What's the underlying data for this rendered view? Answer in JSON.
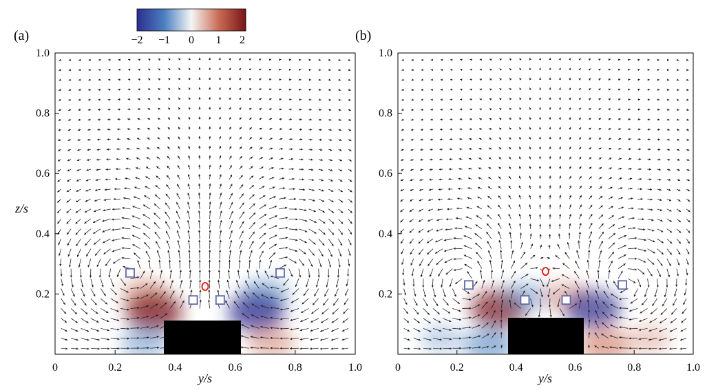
{
  "colorbar": {
    "ticks": [
      "−2",
      "−1",
      "0",
      "1",
      "2"
    ],
    "range": [
      -2,
      2
    ],
    "colors": [
      "#2c2f8f",
      "#4b7fc0",
      "#f5f5f5",
      "#c96d55",
      "#7a1419"
    ]
  },
  "marker_colors": {
    "square": "#5c68a8",
    "circle": "#e3281c",
    "body": "#000000"
  },
  "chart_data": [
    {
      "type": "vector-field",
      "panel_label": "(a)",
      "xlabel": "y/s",
      "ylabel": "z/s",
      "xlim": [
        0,
        1.0
      ],
      "ylim": [
        0,
        1.0
      ],
      "xticks": [
        "0",
        "0.2",
        "0.4",
        "0.6",
        "0.8",
        "1.0"
      ],
      "yticks": [
        "0.2",
        "0.4",
        "0.6",
        "0.8",
        "1.0"
      ],
      "block": {
        "y": [
          0.375,
          0.625
        ],
        "z": [
          0,
          0.12
        ]
      },
      "square_markers": [
        [
          0.25,
          0.27
        ],
        [
          0.75,
          0.27
        ],
        [
          0.46,
          0.18
        ],
        [
          0.55,
          0.18
        ]
      ],
      "circle_markers": [
        [
          0.5,
          0.225
        ]
      ],
      "vortex_centres": [
        [
          0.25,
          0.27,
          1
        ],
        [
          0.75,
          0.27,
          -1
        ]
      ],
      "vorticity_patches": [
        {
          "y": 0.3,
          "z": 0.2,
          "value": 0.6
        },
        {
          "y": 0.33,
          "z": 0.14,
          "value": 1.4
        },
        {
          "y": 0.7,
          "z": 0.2,
          "value": -0.6
        },
        {
          "y": 0.67,
          "z": 0.14,
          "value": -1.4
        },
        {
          "y": 0.3,
          "z": 0.04,
          "value": -0.6
        },
        {
          "y": 0.72,
          "z": 0.04,
          "value": 0.6
        }
      ]
    },
    {
      "type": "vector-field",
      "panel_label": "(b)",
      "xlabel": "y/s",
      "ylabel": "",
      "xlim": [
        0,
        1.0
      ],
      "ylim": [
        0,
        1.0
      ],
      "xticks": [
        "0",
        "0.2",
        "0.4",
        "0.6",
        "0.8",
        "1.0"
      ],
      "yticks": [
        "0.2",
        "0.4",
        "0.6",
        "0.8",
        "1.0"
      ],
      "block": {
        "y": [
          0.375,
          0.625
        ],
        "z": [
          0,
          0.12
        ]
      },
      "square_markers": [
        [
          0.24,
          0.23
        ],
        [
          0.76,
          0.23
        ],
        [
          0.43,
          0.18
        ],
        [
          0.57,
          0.18
        ]
      ],
      "circle_markers": [
        [
          0.5,
          0.275
        ]
      ],
      "vortex_centres": [
        [
          0.24,
          0.23,
          1
        ],
        [
          0.76,
          0.23,
          -1
        ],
        [
          0.43,
          0.18,
          -1
        ],
        [
          0.57,
          0.18,
          1
        ]
      ],
      "vorticity_patches": [
        {
          "y": 0.34,
          "z": 0.15,
          "value": 1.3
        },
        {
          "y": 0.43,
          "z": 0.19,
          "value": -0.5
        },
        {
          "y": 0.57,
          "z": 0.19,
          "value": 0.5
        },
        {
          "y": 0.66,
          "z": 0.15,
          "value": -1.3
        },
        {
          "y": 0.31,
          "z": 0.03,
          "value": -0.9
        },
        {
          "y": 0.7,
          "z": 0.03,
          "value": 0.9
        },
        {
          "y": 0.15,
          "z": 0.05,
          "value": -0.2
        },
        {
          "y": 0.85,
          "z": 0.05,
          "value": 0.2
        }
      ]
    }
  ]
}
